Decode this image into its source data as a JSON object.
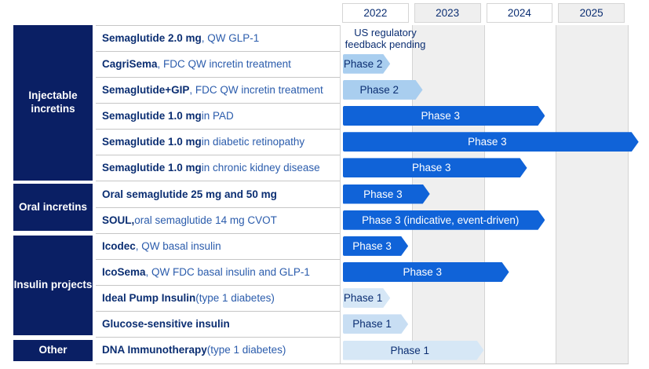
{
  "colors": {
    "navy": "#0A1F64",
    "project_bold_text": "#0B2E72",
    "project_regular_text": "#2B5CAC",
    "phase3_fill": "#1063D8",
    "phase3_text": "#FFFFFF",
    "phase2_fill": "#A9CEEF",
    "phase1_fill": "#D6E7F6",
    "phase1_alt_fill": "#C8DEF3",
    "column_stripe_gray": "#EFEFEF",
    "grid_line": "#C6C6C6"
  },
  "chart_data": {
    "type": "gantt",
    "x_axis": {
      "unit": "year",
      "ticks": [
        "2022",
        "2023",
        "2024",
        "2025"
      ],
      "range": [
        2022,
        2026
      ],
      "column_shading": [
        "white",
        "gray",
        "white",
        "gray"
      ]
    },
    "categories": [
      {
        "label": "Injectable incretins",
        "rows": [
          1,
          2,
          3,
          4,
          5,
          6
        ]
      },
      {
        "label": "Oral incretins",
        "rows": [
          7,
          8
        ]
      },
      {
        "label": "Insulin projects",
        "rows": [
          9,
          10,
          11,
          12
        ]
      },
      {
        "label": "Other",
        "rows": [
          13
        ]
      }
    ],
    "rows": [
      {
        "project": "Semaglutide 2.0 mg",
        "description": ", QW GLP-1",
        "annotation": "US regulatory feedback pending",
        "phase": null,
        "level": null,
        "start": null,
        "end": null
      },
      {
        "project": "CagriSema",
        "description": ", FDC QW incretin treatment",
        "annotation": null,
        "phase": "Phase 2",
        "level": "phase2",
        "start": 2022.0,
        "end": 2022.7
      },
      {
        "project": "Semaglutide+GIP",
        "description": ", FDC QW incretin treatment",
        "annotation": null,
        "phase": "Phase 2",
        "level": "phase2",
        "start": 2022.0,
        "end": 2023.15
      },
      {
        "project": "Semaglutide 1.0 mg",
        "description": " in PAD",
        "annotation": null,
        "phase": "Phase 3",
        "level": "phase3",
        "start": 2022.0,
        "end": 2024.85
      },
      {
        "project": "Semaglutide 1.0 mg",
        "description": " in diabetic retinopathy",
        "annotation": null,
        "phase": "Phase 3",
        "level": "phase3",
        "start": 2022.0,
        "end": 2026.15
      },
      {
        "project": "Semaglutide 1.0 mg",
        "description": " in chronic kidney disease",
        "annotation": null,
        "phase": "Phase 3",
        "level": "phase3",
        "start": 2022.0,
        "end": 2024.6
      },
      {
        "project": "Oral semaglutide 25 mg and 50 mg",
        "description": "",
        "annotation": null,
        "phase": "Phase 3",
        "level": "phase3",
        "start": 2022.0,
        "end": 2023.25
      },
      {
        "project": "SOUL,",
        "description": " oral semaglutide 14 mg CVOT",
        "annotation": null,
        "phase": "Phase 3 (indicative, event-driven)",
        "level": "phase3",
        "start": 2022.0,
        "end": 2024.85
      },
      {
        "project": "Icodec",
        "description": ", QW basal insulin",
        "annotation": null,
        "phase": "Phase 3",
        "level": "phase3",
        "start": 2022.0,
        "end": 2022.95
      },
      {
        "project": "IcoSema",
        "description": ", QW FDC basal insulin and GLP-1",
        "annotation": null,
        "phase": "Phase 3",
        "level": "phase3",
        "start": 2022.0,
        "end": 2024.35
      },
      {
        "project": "Ideal Pump Insulin",
        "description": " (type 1 diabetes)",
        "annotation": null,
        "phase": "Phase 1",
        "level": "phase1",
        "start": 2022.0,
        "end": 2022.7
      },
      {
        "project": "Glucose-sensitive insulin",
        "description": "",
        "annotation": null,
        "phase": "Phase 1",
        "level": "phase1alt",
        "start": 2022.0,
        "end": 2022.95
      },
      {
        "project": "DNA Immunotherapy",
        "description": " (type 1 diabetes)",
        "annotation": null,
        "phase": "Phase 1",
        "level": "phase1",
        "start": 2022.0,
        "end": 2024.0
      }
    ]
  }
}
